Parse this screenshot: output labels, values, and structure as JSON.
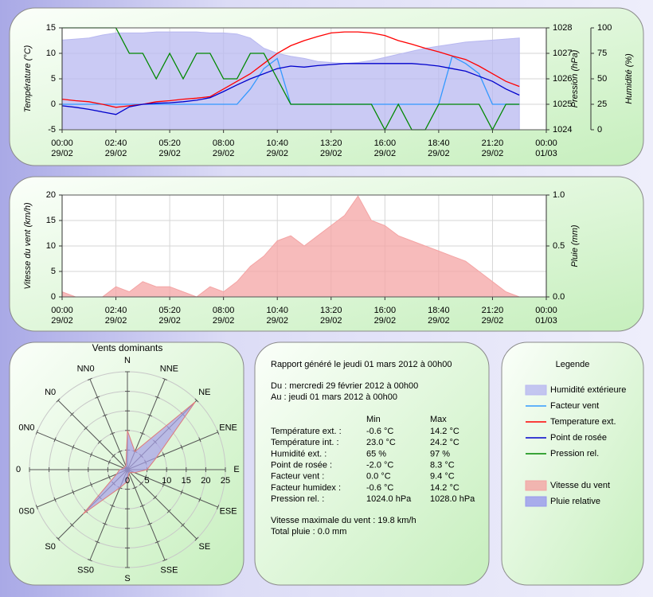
{
  "chart_data": [
    {
      "type": "line",
      "xlim": [
        0,
        1440
      ],
      "xticks": [
        {
          "value": 0,
          "label": "00:00",
          "date": "29/02"
        },
        {
          "value": 160,
          "label": "02:40",
          "date": "29/02"
        },
        {
          "value": 320,
          "label": "05:20",
          "date": "29/02"
        },
        {
          "value": 480,
          "label": "08:00",
          "date": "29/02"
        },
        {
          "value": 640,
          "label": "10:40",
          "date": "29/02"
        },
        {
          "value": 800,
          "label": "13:20",
          "date": "29/02"
        },
        {
          "value": 960,
          "label": "16:00",
          "date": "29/02"
        },
        {
          "value": 1120,
          "label": "18:40",
          "date": "29/02"
        },
        {
          "value": 1280,
          "label": "21:20",
          "date": "29/02"
        },
        {
          "value": 1440,
          "label": "00:00",
          "date": "01/03"
        }
      ],
      "x": [
        0,
        40,
        80,
        120,
        160,
        200,
        240,
        280,
        320,
        360,
        400,
        440,
        480,
        520,
        560,
        600,
        640,
        680,
        720,
        760,
        800,
        840,
        880,
        920,
        960,
        1000,
        1040,
        1080,
        1120,
        1160,
        1200,
        1240,
        1280,
        1320,
        1360
      ],
      "ylabel": "Température (°C)",
      "ylim": [
        -5,
        15
      ],
      "yticks": [
        -5,
        0,
        5,
        10,
        15
      ],
      "y2label": "Pression (hPa)",
      "y2lim": [
        1024,
        1028
      ],
      "y2ticks": [
        1024,
        1025,
        1026,
        1027,
        1028
      ],
      "y3label": "Humidité (%)",
      "y3lim": [
        0,
        100
      ],
      "y3ticks": [
        0,
        25,
        50,
        75,
        100
      ],
      "grid": true,
      "series": [
        {
          "kind": "area",
          "axis": "y3",
          "color": "#b8b8f0",
          "values": [
            88,
            89,
            90,
            93,
            95,
            95,
            95,
            96,
            96,
            96,
            96,
            95,
            95,
            94,
            90,
            80,
            75,
            72,
            70,
            67,
            66,
            65,
            66,
            68,
            71,
            74,
            77,
            80,
            82,
            84,
            86,
            87,
            88,
            89,
            90
          ]
        },
        {
          "kind": "line",
          "axis": "y",
          "color": "#3399ff",
          "values": [
            0,
            0,
            0,
            0,
            0,
            0,
            0,
            0,
            0,
            0,
            0,
            0,
            0,
            0,
            3,
            7,
            9,
            0,
            0,
            0,
            0,
            0,
            0,
            0,
            0,
            0,
            0,
            0,
            0,
            9.4,
            8,
            6,
            0,
            0,
            0
          ]
        },
        {
          "kind": "line",
          "axis": "y",
          "color": "#ff0000",
          "values": [
            1,
            0.7,
            0.5,
            0,
            -0.6,
            -0.3,
            0,
            0.5,
            0.7,
            1,
            1.2,
            1.5,
            3,
            4.5,
            6,
            8,
            10,
            11.5,
            12.5,
            13.3,
            14,
            14.2,
            14.2,
            14,
            13.5,
            12.5,
            11.8,
            11,
            10.3,
            9.5,
            8.8,
            7.5,
            6,
            4.5,
            3.5
          ]
        },
        {
          "kind": "line",
          "axis": "y",
          "color": "#0000cc",
          "values": [
            -0.3,
            -0.6,
            -1,
            -1.5,
            -2,
            -0.5,
            0,
            0.2,
            0.3,
            0.5,
            0.8,
            1.3,
            2.5,
            3.8,
            5,
            6,
            7,
            7.5,
            7.3,
            7.6,
            7.8,
            8,
            8,
            8,
            8,
            8,
            8,
            7.8,
            7.5,
            7,
            6.5,
            5.5,
            4.5,
            3,
            1.8
          ]
        },
        {
          "kind": "line",
          "axis": "y2",
          "color": "#008800",
          "values": [
            1028,
            1028,
            1028,
            1028,
            1028,
            1027,
            1027,
            1026,
            1027,
            1026,
            1027,
            1027,
            1026,
            1026,
            1027,
            1027,
            1026,
            1025,
            1025,
            1025,
            1025,
            1025,
            1025,
            1025,
            1024,
            1025,
            1024,
            1024,
            1025,
            1025,
            1025,
            1025,
            1024,
            1025,
            1025
          ]
        }
      ]
    },
    {
      "type": "area",
      "xlim": [
        0,
        1440
      ],
      "xticks": [
        {
          "value": 0,
          "label": "00:00",
          "date": "29/02"
        },
        {
          "value": 160,
          "label": "02:40",
          "date": "29/02"
        },
        {
          "value": 320,
          "label": "05:20",
          "date": "29/02"
        },
        {
          "value": 480,
          "label": "08:00",
          "date": "29/02"
        },
        {
          "value": 640,
          "label": "10:40",
          "date": "29/02"
        },
        {
          "value": 800,
          "label": "13:20",
          "date": "29/02"
        },
        {
          "value": 960,
          "label": "16:00",
          "date": "29/02"
        },
        {
          "value": 1120,
          "label": "18:40",
          "date": "29/02"
        },
        {
          "value": 1280,
          "label": "21:20",
          "date": "29/02"
        },
        {
          "value": 1440,
          "label": "00:00",
          "date": "01/03"
        }
      ],
      "x": [
        0,
        40,
        80,
        120,
        160,
        200,
        240,
        280,
        320,
        360,
        400,
        440,
        480,
        520,
        560,
        600,
        640,
        680,
        720,
        760,
        800,
        840,
        880,
        920,
        960,
        1000,
        1040,
        1080,
        1120,
        1160,
        1200,
        1240,
        1280,
        1320,
        1360
      ],
      "ylabel": "Vitesse du vent (km/h)",
      "ylim": [
        0,
        20
      ],
      "yticks": [
        0,
        5,
        10,
        15,
        20
      ],
      "y2label": "Pluie (mm)",
      "y2lim": [
        0,
        1
      ],
      "y2ticks": [
        {
          "value": 0,
          "label": "0.0"
        },
        0.5,
        {
          "value": 1,
          "label": "1.0"
        }
      ],
      "grid": true,
      "series": [
        {
          "kind": "area",
          "axis": "y",
          "color": "#f4a4a4",
          "values": [
            1,
            0,
            0,
            0,
            2,
            1,
            3,
            2,
            2,
            1,
            0,
            2,
            1,
            3,
            6,
            8,
            11,
            12,
            10,
            12,
            14,
            16,
            19.8,
            15,
            14,
            12,
            11,
            10,
            9,
            8,
            7,
            5,
            3,
            1,
            0
          ]
        }
      ]
    },
    {
      "type": "radar",
      "title": "Vents dominants",
      "categories": [
        "N",
        "NNE",
        "NE",
        "ENE",
        "E",
        "ESE",
        "SE",
        "SSE",
        "S",
        "SS0",
        "S0",
        "0S0",
        "0",
        "0N0",
        "N0",
        "NN0"
      ],
      "values": [
        10,
        5,
        24.5,
        8,
        5,
        2,
        1,
        1,
        3,
        5,
        16,
        3,
        2,
        1,
        1,
        1
      ],
      "color": "#a8a0e8",
      "rlim": [
        0,
        25
      ],
      "rticks": [
        0,
        5,
        10,
        15,
        20,
        25
      ]
    }
  ],
  "report": {
    "title": "Rapport généré le jeudi 01 mars 2012 à 00h00",
    "from": "Du : mercredi 29 février 2012 à 00h00",
    "to": "Au : jeudi 01 mars 2012 à 00h00",
    "columns": [
      "Min",
      "Max"
    ],
    "rows": [
      [
        "Température ext. :",
        "-0.6 °C",
        "14.2 °C"
      ],
      [
        "Température int. :",
        "23.0 °C",
        "24.2 °C"
      ],
      [
        "Humidité ext. :",
        "65 %",
        "97 %"
      ],
      [
        "Point de rosée :",
        "-2.0 °C",
        "8.3 °C"
      ],
      [
        "Facteur vent :",
        "0.0 °C",
        "9.4 °C"
      ],
      [
        "Facteur humidex :",
        "-0.6 °C",
        "14.2 °C"
      ],
      [
        "Pression rel. :",
        "1024.0 hPa",
        "1028.0 hPa"
      ]
    ],
    "max_wind": "Vitesse maximale du vent : 19.8 km/h",
    "total_rain": "Total pluie : 0.0 mm"
  },
  "legend": {
    "title": "Legende",
    "items": [
      {
        "name": "Humidité extérieure",
        "kind": "area",
        "color": "#b8b8f0"
      },
      {
        "name": "Facteur vent",
        "kind": "line",
        "color": "#3399ff"
      },
      {
        "name": "Temperature ext.",
        "kind": "line",
        "color": "#ff0000"
      },
      {
        "name": "Point de rosée",
        "kind": "line",
        "color": "#0000cc"
      },
      {
        "name": "Pression rel.",
        "kind": "line",
        "color": "#008800"
      },
      {
        "name": "Vitesse du vent",
        "kind": "area",
        "color": "#f4a4a4"
      },
      {
        "name": "Pluie relative",
        "kind": "area",
        "color": "#9999ee"
      }
    ]
  }
}
